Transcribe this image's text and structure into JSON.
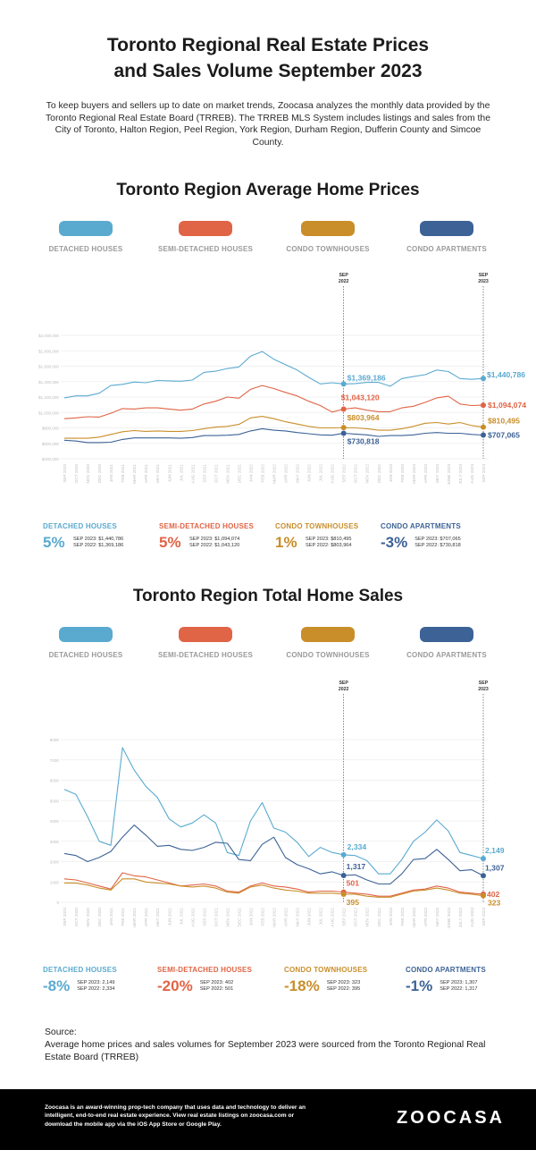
{
  "title_line1": "Toronto Regional Real Estate Prices",
  "title_line2": "and Sales Volume September 2023",
  "intro": "To keep buyers and sellers up to date on market trends, Zoocasa analyzes the monthly data provided by the Toronto Regional Real Estate Board (TRREB). The TRREB MLS System includes listings and sales from the City of Toronto, Halton Region, Peel Region, York Region, Durham Region, Dufferin County and Simcoe County.",
  "colors": {
    "detached": "#5aaad0",
    "semi": "#e06446",
    "townhouse": "#c98e2a",
    "apartment": "#3c6296"
  },
  "legend": [
    {
      "label": "DETACHED HOUSES",
      "color": "#5aaad0"
    },
    {
      "label": "SEMI-DETACHED HOUSES",
      "color": "#e06446"
    },
    {
      "label": "CONDO TOWNHOUSES",
      "color": "#c98e2a"
    },
    {
      "label": "CONDO APARTMENTS",
      "color": "#3c6296"
    }
  ],
  "prices_stats": [
    {
      "name": "DETACHED HOUSES",
      "pct": "5%",
      "line1": "SEP 2023: $1,440,786",
      "line2": "SEP 2022: $1,369,186",
      "color": "#5aaad0"
    },
    {
      "name": "SEMI-DETACHED HOUSES",
      "pct": "5%",
      "line1": "SEP 2023: $1,094,074",
      "line2": "SEP 2022: $1,043,120",
      "color": "#e06446"
    },
    {
      "name": "CONDO TOWNHOUSES",
      "pct": "1%",
      "line1": "SEP 2023: $810,495",
      "line2": "SEP 2022: $803,964",
      "color": "#c98e2a"
    },
    {
      "name": "CONDO APARTMENTS",
      "pct": "-3%",
      "line1": "SEP 2023: $707,065",
      "line2": "SEP 2022: $730,818",
      "color": "#3c6296"
    }
  ],
  "sales_stats": [
    {
      "name": "DETACHED HOUSES",
      "pct": "-8%",
      "line1": "SEP 2023: 2,149",
      "line2": "SEP 2022: 2,334",
      "color": "#5aaad0"
    },
    {
      "name": "SEMI-DETACHED HOUSES",
      "pct": "-20%",
      "line1": "SEP 2023: 402",
      "line2": "SEP 2022: 501",
      "color": "#e06446"
    },
    {
      "name": "CONDO TOWNHOUSES",
      "pct": "-18%",
      "line1": "SEP 2023: 323",
      "line2": "SEP 2022: 395",
      "color": "#c98e2a"
    },
    {
      "name": "CONDO APARTMENTS",
      "pct": "-1%",
      "line1": "SEP 2023: 1,307",
      "line2": "SEP 2022: 1,317",
      "color": "#3c6296"
    }
  ],
  "source_heading": "Source:",
  "source_text": "Average home prices and sales volumes for September 2023 were sourced from the Toronto Regional Real Estate Board (TRREB)",
  "footer_text": "Zoocasa is an award-winning prop-tech company that uses data and technology to deliver an intelligent, end-to-end real estate experience. View real estate listings on zoocasa.com or download the mobile app via the iOS App Store or Google Play.",
  "logo": "ZOOCASA",
  "chart_data": [
    {
      "type": "line",
      "title": "Toronto Region Average Home Prices",
      "categories": [
        "SEP 2020",
        "OCT 2020",
        "NOV 2020",
        "DEC 2020",
        "JAN 2021",
        "FEB 2021",
        "MAR 2021",
        "APR 2021",
        "MAY 2021",
        "JUN 2021",
        "JUL 2021",
        "AUG 2021",
        "SEP 2021",
        "OCT 2021",
        "NOV 2021",
        "DEC 2021",
        "JAN 2022",
        "FEB 2022",
        "MAR 2022",
        "APR 2022",
        "MAY 2022",
        "JUN 2022",
        "JUL 2022",
        "AUG 2022",
        "SEP 2022",
        "OCT 2022",
        "NOV 2022",
        "DEC 2022",
        "JAN 2023",
        "FEB 2023",
        "MAR 2023",
        "APR 2023",
        "MAY 2023",
        "JUNE 2023",
        "JULY 2023",
        "AUG 2023",
        "SEP 2023"
      ],
      "ylim": [
        400000,
        2000000
      ],
      "yticks": [
        "$400,000",
        "$600,000",
        "$800,000",
        "$1,000,000",
        "$1,200,000",
        "$1,400,000",
        "$1,600,000",
        "$1,800,000",
        "$2,000,000"
      ],
      "markers": [
        {
          "index": 24,
          "label": "SEP 2022"
        },
        {
          "index": 36,
          "label": "SEP 2023"
        }
      ],
      "series": [
        {
          "name": "DETACHED HOUSES",
          "color": "#5aaad0",
          "values": [
            1190000,
            1215000,
            1215000,
            1250000,
            1350000,
            1365000,
            1395000,
            1385000,
            1415000,
            1410000,
            1405000,
            1420000,
            1520000,
            1535000,
            1570000,
            1590000,
            1730000,
            1790000,
            1690000,
            1620000,
            1550000,
            1455000,
            1370000,
            1385000,
            1369186,
            1375000,
            1390000,
            1390000,
            1340000,
            1440000,
            1465000,
            1490000,
            1550000,
            1530000,
            1440000,
            1430000,
            1440786
          ],
          "start_label": "$1,369,186",
          "end_label": "$1,440,786"
        },
        {
          "name": "SEMI-DETACHED HOUSES",
          "color": "#e06446",
          "values": [
            920000,
            930000,
            945000,
            940000,
            990000,
            1050000,
            1045000,
            1060000,
            1060000,
            1045000,
            1030000,
            1045000,
            1110000,
            1145000,
            1200000,
            1185000,
            1300000,
            1350000,
            1310000,
            1260000,
            1215000,
            1145000,
            1090000,
            1005000,
            1043120,
            1060000,
            1030000,
            1010000,
            1010000,
            1060000,
            1080000,
            1130000,
            1190000,
            1210000,
            1110000,
            1090000,
            1094074
          ],
          "start_label": "$1,043,120",
          "end_label": "$1,094,074"
        },
        {
          "name": "CONDO TOWNHOUSES",
          "color": "#c98e2a",
          "values": [
            665000,
            665000,
            665000,
            680000,
            715000,
            750000,
            765000,
            755000,
            760000,
            755000,
            755000,
            765000,
            790000,
            810000,
            820000,
            845000,
            930000,
            950000,
            920000,
            880000,
            850000,
            820000,
            800000,
            800000,
            803964,
            800000,
            790000,
            770000,
            770000,
            790000,
            820000,
            860000,
            870000,
            850000,
            870000,
            830000,
            810495
          ],
          "start_label": "$803,964",
          "end_label": "$810,495"
        },
        {
          "name": "CONDO APARTMENTS",
          "color": "#3c6296",
          "values": [
            640000,
            630000,
            610000,
            610000,
            615000,
            650000,
            670000,
            670000,
            670000,
            670000,
            665000,
            675000,
            700000,
            700000,
            705000,
            715000,
            760000,
            790000,
            770000,
            760000,
            740000,
            725000,
            710000,
            705000,
            730818,
            720000,
            710000,
            690000,
            700000,
            700000,
            710000,
            730000,
            740000,
            730000,
            730000,
            715000,
            707065
          ],
          "start_label": "$730,818",
          "end_label": "$707,065"
        }
      ]
    },
    {
      "type": "line",
      "title": "Toronto Region Total Home Sales",
      "categories": [
        "SEP 2020",
        "OCT 2020",
        "NOV 2020",
        "DEC 2020",
        "JAN 2021",
        "FEB 2021",
        "MAR 2021",
        "APR 2021",
        "MAY 2021",
        "JUN 2021",
        "JUL 2021",
        "AUG 2021",
        "SEP 2021",
        "OCT 2021",
        "NOV 2021",
        "DEC 2021",
        "JAN 2022",
        "FEB 2022",
        "MAR 2022",
        "APR 2022",
        "MAY 2022",
        "JUN 2022",
        "JUL 2022",
        "AUG 2022",
        "SEP 2022",
        "OCT 2022",
        "NOV 2022",
        "DEC 2022",
        "JAN 2023",
        "FEB 2023",
        "MAR 2023",
        "APR 2023",
        "MAY 2023",
        "JUNE 2023",
        "JULY 2023",
        "AUG 2023",
        "SEP 2023"
      ],
      "ylim": [
        0,
        8000
      ],
      "yticks": [
        "0",
        "1000",
        "2000",
        "3000",
        "4000",
        "5000",
        "6000",
        "7000",
        "8000"
      ],
      "markers": [
        {
          "index": 24,
          "label": "SEP 2022"
        },
        {
          "index": 36,
          "label": "SEP 2023"
        }
      ],
      "series": [
        {
          "name": "DETACHED HOUSES",
          "color": "#5aaad0",
          "values": [
            5550,
            5300,
            4200,
            3000,
            2800,
            7600,
            6500,
            5700,
            5150,
            4100,
            3700,
            3900,
            4300,
            3900,
            2450,
            2300,
            4000,
            4900,
            3650,
            3450,
            2950,
            2250,
            2700,
            2450,
            2334,
            2300,
            2050,
            1400,
            1400,
            2100,
            3000,
            3450,
            4050,
            3500,
            2450,
            2300,
            2149
          ],
          "start_label": "2,334",
          "end_label": "2,149"
        },
        {
          "name": "SEMI-DETACHED HOUSES",
          "color": "#e06446",
          "values": [
            1150,
            1100,
            950,
            800,
            650,
            1450,
            1300,
            1250,
            1100,
            950,
            800,
            850,
            900,
            800,
            550,
            500,
            800,
            950,
            800,
            750,
            650,
            500,
            550,
            550,
            501,
            450,
            400,
            300,
            300,
            450,
            600,
            650,
            800,
            700,
            500,
            450,
            402
          ],
          "start_label": "501",
          "end_label": "402"
        },
        {
          "name": "CONDO TOWNHOUSES",
          "color": "#c98e2a",
          "values": [
            950,
            950,
            850,
            700,
            600,
            1150,
            1150,
            1000,
            950,
            900,
            800,
            750,
            800,
            700,
            500,
            450,
            750,
            850,
            700,
            600,
            550,
            450,
            450,
            450,
            395,
            400,
            300,
            250,
            250,
            400,
            550,
            600,
            700,
            600,
            450,
            400,
            323
          ],
          "start_label": "395",
          "end_label": "323"
        },
        {
          "name": "CONDO APARTMENTS",
          "color": "#3c6296",
          "values": [
            2400,
            2300,
            2000,
            2200,
            2500,
            3200,
            3800,
            3300,
            2750,
            2800,
            2600,
            2550,
            2700,
            2950,
            2900,
            2100,
            2050,
            2850,
            3200,
            2200,
            1850,
            1650,
            1400,
            1500,
            1317,
            1350,
            1100,
            900,
            900,
            1400,
            2100,
            2150,
            2600,
            2100,
            1550,
            1600,
            1307
          ],
          "start_label": "1,317",
          "end_label": "1,307"
        }
      ]
    }
  ]
}
